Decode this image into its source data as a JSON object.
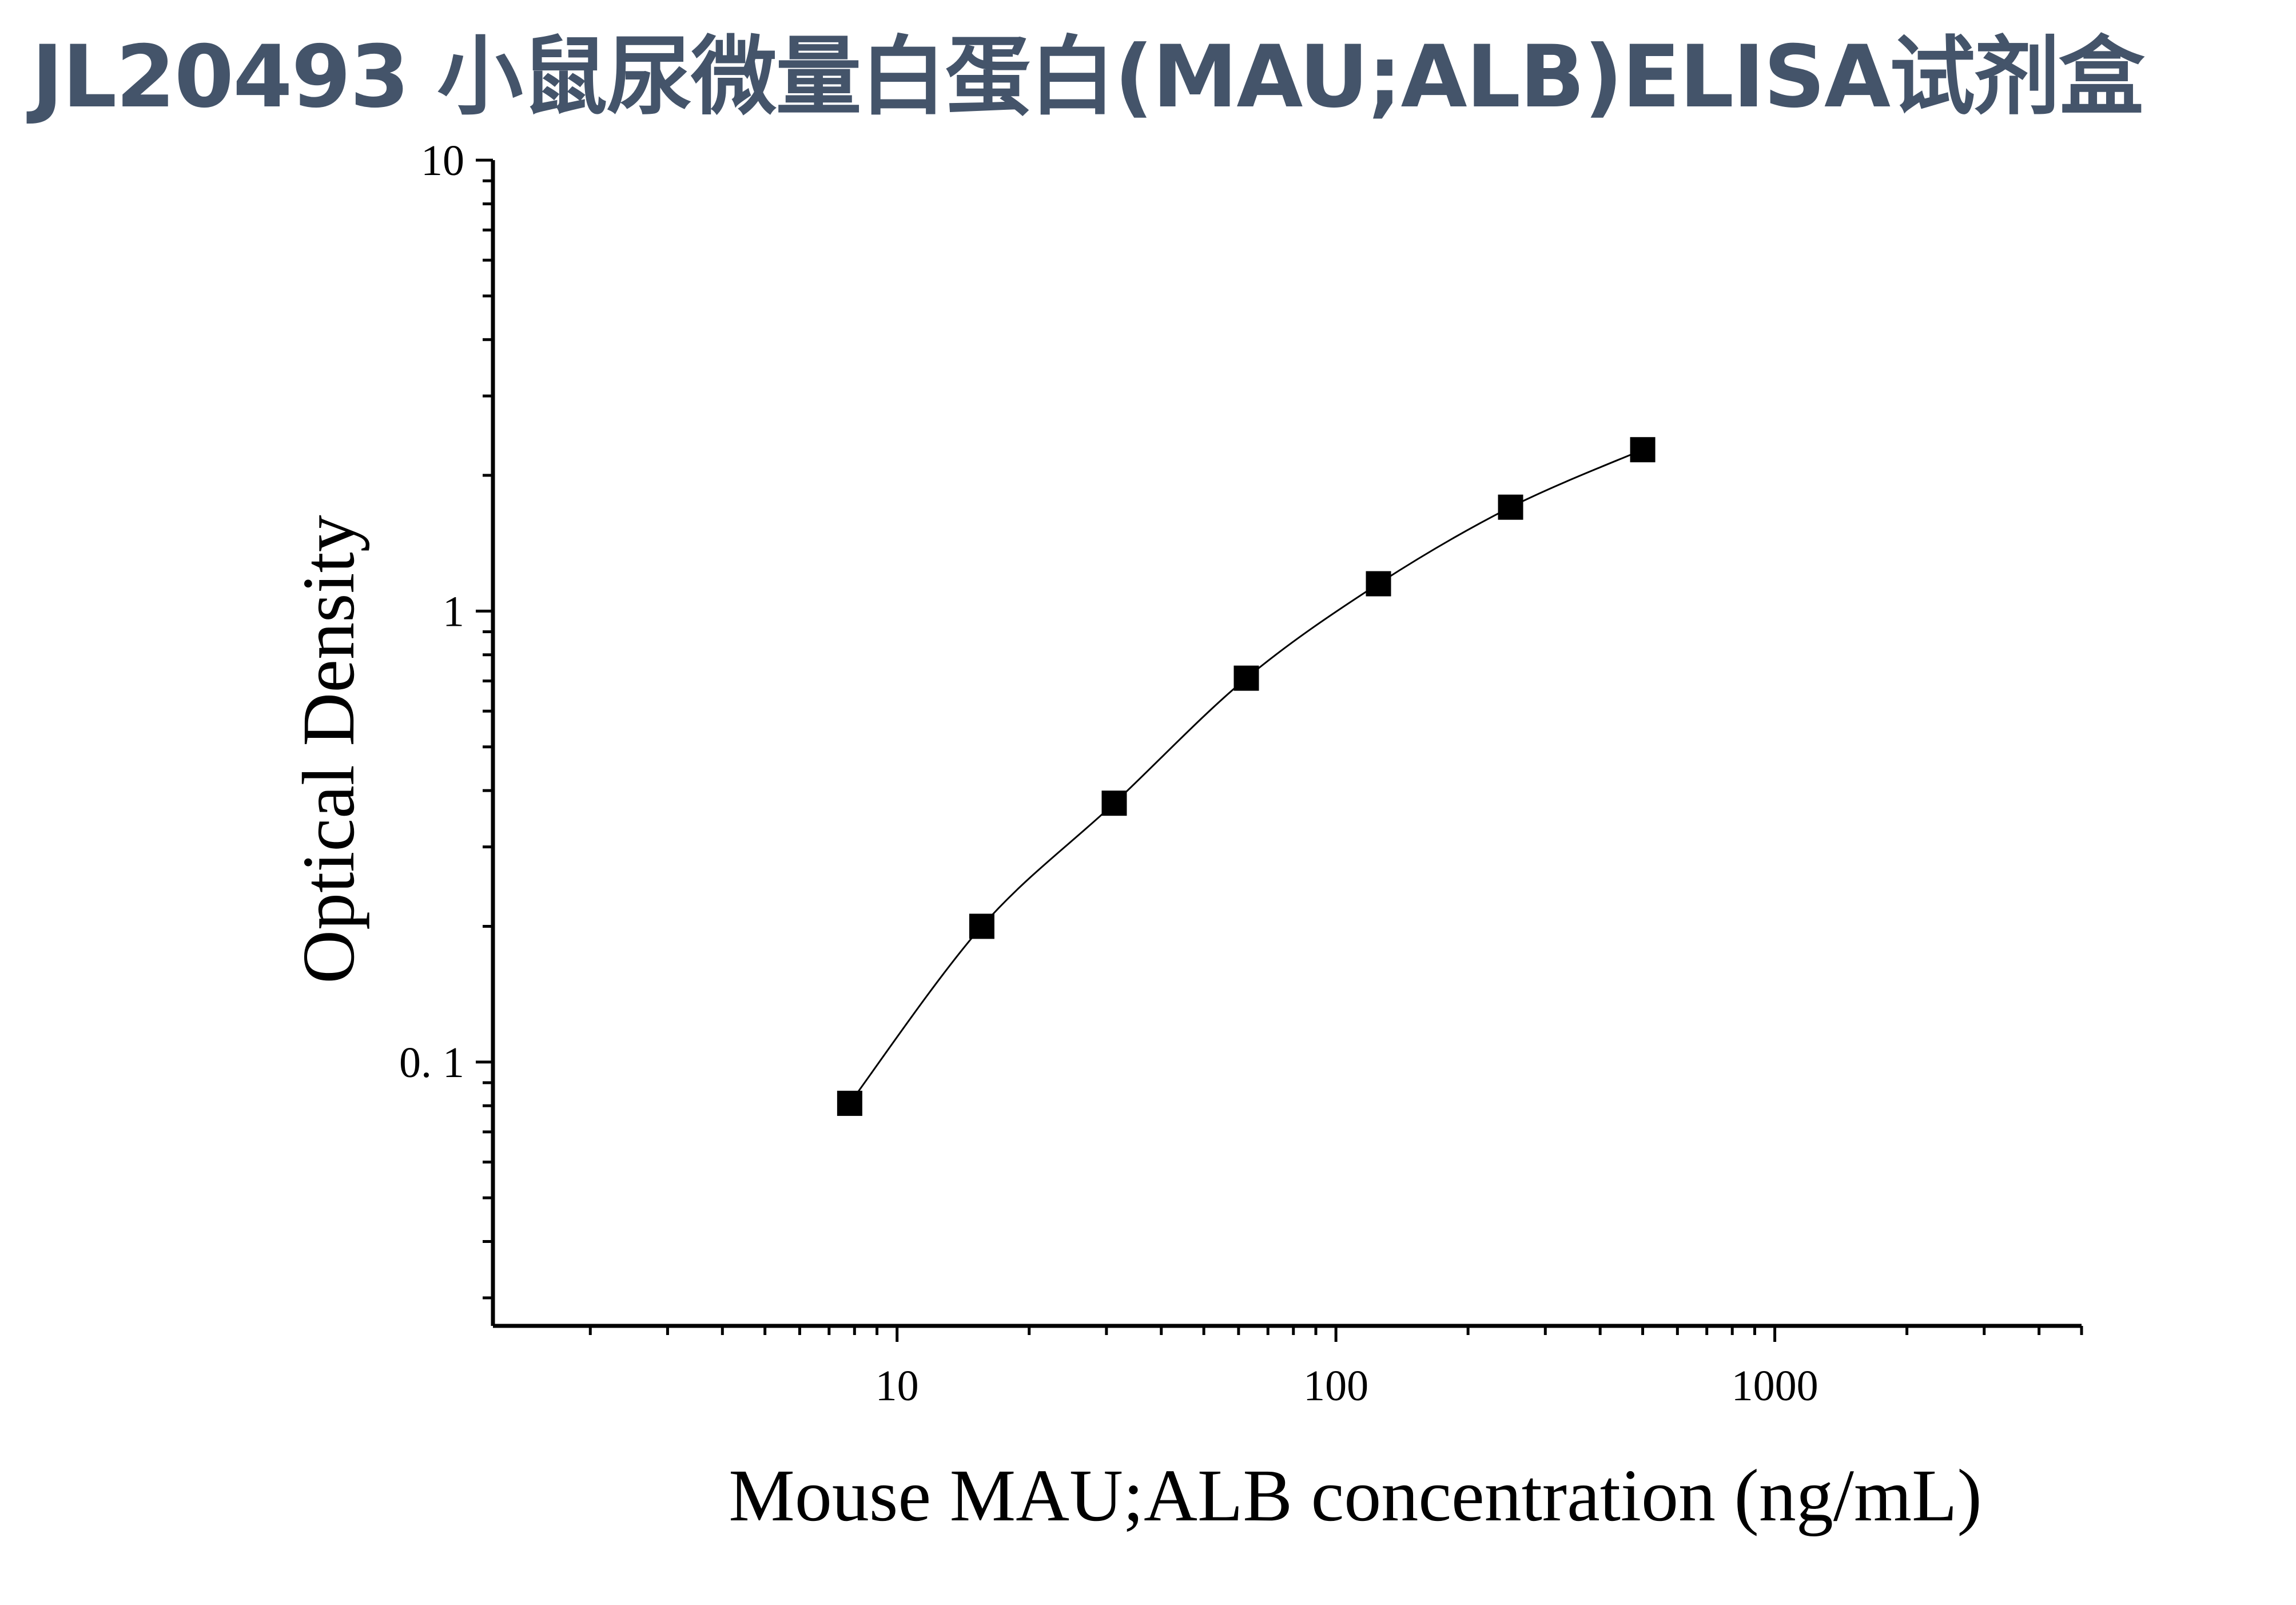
{
  "title": "JL20493 小鼠尿微量白蛋白(MAU;ALB)ELISA试剂盒",
  "chart_data": {
    "type": "scatter",
    "title": "JL20493 小鼠尿微量白蛋白(MAU;ALB)ELISA试剂盒",
    "xlabel": "Mouse MAU;ALB concentration (ng/mL)",
    "ylabel": "Optical Density",
    "x_scale": "log",
    "y_scale": "log",
    "xlim": [
      1.2,
      5000
    ],
    "ylim": [
      0.026,
      10
    ],
    "x_ticks": [
      10,
      100,
      1000
    ],
    "x_tick_labels": [
      "10",
      "100",
      "1000"
    ],
    "y_ticks": [
      0.1,
      1,
      10
    ],
    "y_tick_labels": [
      "0. 1",
      "1",
      "10"
    ],
    "grid": false,
    "legend": false,
    "fit_curve": true,
    "marker": "square",
    "series": [
      {
        "x": [
          7.8,
          15.6,
          31.25,
          62.5,
          125,
          250,
          500
        ],
        "y": [
          0.081,
          0.2,
          0.375,
          0.71,
          1.15,
          1.7,
          2.28
        ]
      }
    ],
    "colors": {
      "title": "#44546a",
      "axis": "#000000",
      "marker": "#000000",
      "curve": "#000000"
    }
  }
}
